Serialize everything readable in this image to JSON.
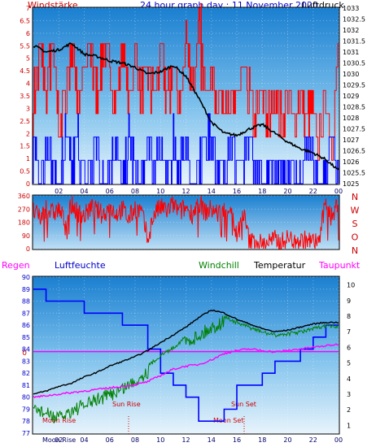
{
  "header": {
    "left_label": "Windstärke",
    "title": "24 hour graph day : 11 November 2020",
    "right_label": "Luftdruck"
  },
  "top_panel": {
    "left_ticks": [
      "0",
      "0.5",
      "1",
      "1.5",
      "2",
      "2.5",
      "3",
      "3.5",
      "4",
      "4.5",
      "5",
      "5.5",
      "6",
      "6.5",
      "7"
    ],
    "right_ticks": [
      "1025",
      "1025.5",
      "1026",
      "1026.5",
      "1027",
      "1027.5",
      "1028",
      "1028.5",
      "1029",
      "1029.5",
      "1030",
      "1030.5",
      "1031",
      "1031.5",
      "1032",
      "1032.5",
      "1033"
    ],
    "x_ticks": [
      "02",
      "04",
      "06",
      "08",
      "10",
      "12",
      "14",
      "16",
      "18",
      "20",
      "22",
      "00"
    ]
  },
  "direction_panel": {
    "left_ticks": [
      "0",
      "90",
      "180",
      "270",
      "360"
    ],
    "right_letters": [
      "N",
      "W",
      "S",
      "O",
      "N"
    ]
  },
  "bottom_panel": {
    "legend": {
      "regen": "Regen",
      "luftfeuchte": "Luftfeuchte",
      "windchill": "Windchill",
      "temperatur": "Temperatur",
      "taupunkt": "Taupunkt"
    },
    "left_ticks": [
      "77",
      "78",
      "79",
      "80",
      "81",
      "82",
      "83",
      "84",
      "85",
      "86",
      "87",
      "88",
      "89",
      "90"
    ],
    "right_ticks": [
      "1",
      "2",
      "3",
      "4",
      "5",
      "6",
      "7",
      "8",
      "9",
      "10"
    ],
    "zero_label": "0",
    "x_ticks": [
      "02",
      "04",
      "06",
      "08",
      "10",
      "12",
      "14",
      "16",
      "18",
      "20",
      "22",
      "00"
    ],
    "annotations": {
      "moon_rise": "Moon Rise",
      "sun_rise": "Sun Rise",
      "sun_set": "Sun Set",
      "moon_set": "Moon Set"
    }
  },
  "colors": {
    "wind": "#ff0000",
    "gust": "#0000ff",
    "pressure": "#000000",
    "temperature": "#000000",
    "windchill": "#008000",
    "dewpoint": "#ff00ff",
    "humidity": "#0000ff",
    "rain": "#ff00ff"
  },
  "chart_data": [
    {
      "type": "line",
      "x_unit": "hour",
      "xlim": [
        0,
        24
      ],
      "y_left_lim": [
        0,
        7
      ],
      "y_right_lim": [
        1025,
        1033
      ],
      "series": [
        {
          "axis": "right",
          "x": [
            0,
            1,
            2,
            3,
            4,
            5,
            6,
            7,
            8,
            9,
            10,
            11,
            12,
            13,
            14,
            15,
            16,
            17,
            18,
            19,
            20,
            21,
            22,
            23,
            24
          ],
          "values": [
            1031.3,
            1031.0,
            1031.1,
            1031.4,
            1030.9,
            1030.8,
            1030.6,
            1030.5,
            1030.3,
            1030.0,
            1030.1,
            1030.4,
            1029.9,
            1028.9,
            1027.8,
            1027.3,
            1027.2,
            1027.5,
            1027.7,
            1027.3,
            1026.9,
            1026.6,
            1026.4,
            1026.1,
            1025.6
          ]
        },
        {
          "axis": "left",
          "x": [
            0,
            0.5,
            1,
            1.5,
            2,
            2.5,
            3,
            3.5,
            4,
            4.5,
            5,
            5.5,
            6,
            6.5,
            7,
            7.5,
            8,
            8.5,
            9,
            9.5,
            10,
            10.5,
            11,
            11.5,
            12,
            12.5,
            13,
            13.5,
            14,
            14.5,
            15,
            15.5,
            16,
            16.5,
            17,
            17.5,
            18,
            18.5,
            19,
            19.5,
            20,
            20.5,
            21,
            21.5,
            22,
            22.5,
            23,
            23.5,
            24
          ],
          "values": [
            3.7,
            5.6,
            3.7,
            5.6,
            2.8,
            3.7,
            5.6,
            3.7,
            4.6,
            5.6,
            3.7,
            5.6,
            4.6,
            3.7,
            5.6,
            3.7,
            5.6,
            3.7,
            4.6,
            3.7,
            5.6,
            3.7,
            4.6,
            3.7,
            5.6,
            3.7,
            7.2,
            3.7,
            4.6,
            3.7,
            3.7,
            2.8,
            3.7,
            4.6,
            3.7,
            2.8,
            3.7,
            2.8,
            3.7,
            2.8,
            3.7,
            2.8,
            3.7,
            2.8,
            2.8,
            1.9,
            3.7,
            1.9,
            5.6
          ]
        },
        {
          "axis": "left",
          "x": [
            0,
            0.5,
            1,
            1.5,
            2,
            2.5,
            3,
            3.5,
            4,
            4.5,
            5,
            5.5,
            6,
            6.5,
            7,
            7.5,
            8,
            8.5,
            9,
            9.5,
            10,
            10.5,
            11,
            11.5,
            12,
            12.5,
            13,
            13.5,
            14,
            14.5,
            15,
            15.5,
            16,
            16.5,
            17,
            17.5,
            18,
            18.5,
            19,
            19.5,
            20,
            20.5,
            21,
            21.5,
            22,
            22.5,
            23,
            23.5,
            24
          ],
          "values": [
            1.9,
            0,
            1.9,
            0.9,
            0,
            1.9,
            0.9,
            1.9,
            0,
            0.9,
            1.9,
            0,
            0.9,
            1.9,
            0,
            1.9,
            0.9,
            0,
            1.9,
            0.9,
            1.9,
            0,
            1.9,
            0.9,
            1.9,
            0,
            0.9,
            1.9,
            1.9,
            0.9,
            0.9,
            1.9,
            0.9,
            0.9,
            1.9,
            0.9,
            0,
            0.9,
            0.9,
            0.9,
            0.9,
            0.9,
            0,
            1.9,
            0.9,
            0,
            0.9,
            1.9,
            0.9
          ]
        }
      ]
    },
    {
      "type": "line",
      "x_unit": "hour",
      "xlim": [
        0,
        24
      ],
      "ylim": [
        0,
        360
      ],
      "series": [
        {
          "x": [
            0,
            0.5,
            1,
            1.5,
            2,
            2.5,
            3,
            3.5,
            4,
            4.5,
            5,
            5.5,
            6,
            6.5,
            7,
            7.5,
            8,
            8.5,
            9,
            9.5,
            10,
            10.5,
            11,
            11.5,
            12,
            12.5,
            13,
            13.5,
            14,
            14.5,
            15,
            15.5,
            16,
            16.5,
            17,
            17.5,
            18,
            18.5,
            19,
            19.5,
            20,
            20.5,
            21,
            21.5,
            22,
            22.5,
            23,
            23.5,
            24
          ],
          "values": [
            260,
            200,
            280,
            240,
            270,
            180,
            300,
            250,
            220,
            280,
            260,
            230,
            290,
            240,
            270,
            200,
            280,
            250,
            60,
            240,
            280,
            260,
            300,
            250,
            280,
            240,
            320,
            250,
            270,
            240,
            260,
            290,
            80,
            250,
            40,
            60,
            30,
            50,
            60,
            40,
            70,
            60,
            50,
            60,
            40,
            60,
            330,
            200,
            340
          ]
        }
      ]
    },
    {
      "type": "line",
      "x_unit": "hour",
      "xlim": [
        0,
        24
      ],
      "y_left_lim": [
        77,
        90
      ],
      "y_right_lim": [
        0.5,
        10.5
      ],
      "series": [
        {
          "axis": "right",
          "x": [
            0,
            1,
            2,
            3,
            4,
            5,
            6,
            7,
            8,
            9,
            10,
            11,
            12,
            13,
            14,
            15,
            16,
            17,
            18,
            19,
            20,
            21,
            22,
            23,
            24
          ],
          "values": [
            3.0,
            3.2,
            3.5,
            3.7,
            4.1,
            4.4,
            4.8,
            5.1,
            5.4,
            5.8,
            6.3,
            6.8,
            7.3,
            7.9,
            8.4,
            8.2,
            7.8,
            7.5,
            7.2,
            7.0,
            7.1,
            7.3,
            7.5,
            7.6,
            7.6
          ]
        },
        {
          "axis": "right",
          "x": [
            0,
            1,
            2,
            3,
            4,
            5,
            6,
            7,
            8,
            9,
            10,
            11,
            12,
            13,
            14,
            15,
            16,
            17,
            18,
            19,
            20,
            21,
            22,
            23,
            24
          ],
          "values": [
            2.6,
            2.2,
            1.9,
            2.4,
            2.7,
            3.1,
            3.4,
            3.8,
            4.3,
            4.9,
            5.6,
            6.1,
            6.8,
            7.2,
            7.7,
            8.1,
            7.7,
            7.4,
            7.1,
            6.9,
            7.0,
            7.1,
            7.3,
            7.5,
            7.4
          ]
        },
        {
          "axis": "right",
          "x": [
            0,
            1,
            2,
            3,
            4,
            5,
            6,
            7,
            8,
            9,
            10,
            11,
            12,
            13,
            14,
            15,
            16,
            17,
            18,
            19,
            20,
            21,
            22,
            23,
            24
          ],
          "values": [
            2.8,
            2.9,
            3.0,
            3.1,
            3.2,
            3.3,
            3.4,
            3.5,
            3.6,
            3.8,
            4.2,
            4.6,
            4.8,
            4.9,
            5.2,
            5.6,
            5.8,
            5.9,
            5.8,
            5.7,
            5.8,
            5.9,
            6.0,
            6.1,
            6.2
          ]
        },
        {
          "axis": "left",
          "x": [
            0,
            1,
            1,
            2,
            2,
            3,
            3,
            4,
            4,
            5,
            5,
            6,
            6,
            7,
            7,
            8,
            8,
            9,
            9,
            10,
            10,
            11,
            11,
            12,
            12,
            13,
            13,
            14,
            14,
            15,
            15,
            16,
            16,
            17,
            17,
            18,
            18,
            19,
            19,
            20,
            20,
            21,
            21,
            22,
            22,
            23,
            23,
            24
          ],
          "values": [
            89,
            89,
            88,
            88,
            88,
            88,
            88,
            88,
            87,
            87,
            87,
            87,
            87,
            87,
            86,
            86,
            86,
            86,
            84,
            84,
            82,
            82,
            81,
            81,
            80,
            80,
            78,
            78,
            78,
            78,
            79,
            79,
            81,
            81,
            81,
            81,
            82,
            82,
            83,
            83,
            83,
            83,
            84,
            84,
            85,
            85,
            86,
            86
          ]
        },
        {
          "axis": "left",
          "x": [
            0,
            24
          ],
          "values": [
            83.8,
            83.8
          ]
        }
      ]
    }
  ]
}
